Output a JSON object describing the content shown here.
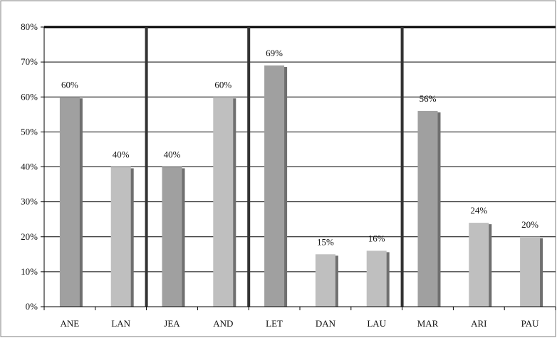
{
  "chart_data": {
    "type": "bar",
    "title": "",
    "xlabel": "",
    "ylabel": "",
    "ylim": [
      0,
      0.8
    ],
    "grid": true,
    "categories": [
      "ANE",
      "LAN",
      "JEA",
      "AND",
      "LET",
      "DAN",
      "LAU",
      "MAR",
      "ARI",
      "PAU"
    ],
    "values": [
      0.6,
      0.4,
      0.4,
      0.6,
      0.69,
      0.15,
      0.16,
      0.56,
      0.24,
      0.2
    ],
    "data_labels": [
      "60%",
      "40%",
      "40%",
      "60%",
      "69%",
      "15%",
      "16%",
      "56%",
      "24%",
      "20%"
    ],
    "y_ticks": [
      {
        "value": 0.0,
        "label": "0%"
      },
      {
        "value": 0.1,
        "label": "10%"
      },
      {
        "value": 0.2,
        "label": "20%"
      },
      {
        "value": 0.3,
        "label": "30%"
      },
      {
        "value": 0.4,
        "label": "40%"
      },
      {
        "value": 0.5,
        "label": "50%"
      },
      {
        "value": 0.6,
        "label": "60%"
      },
      {
        "value": 0.7,
        "label": "70%"
      },
      {
        "value": 0.8,
        "label": "80%"
      }
    ],
    "bar_styles": [
      "dark",
      "light",
      "dark",
      "light",
      "dark",
      "light",
      "light",
      "dark",
      "light",
      "light"
    ],
    "group_separators_after_index": [
      1,
      3,
      6
    ],
    "colors": {
      "dark": "#a0a0a0",
      "light": "#bfbfbf",
      "shadow": "#6f6f6f",
      "grid": "#000000",
      "separator": "#333333",
      "axis": "#000000"
    }
  }
}
